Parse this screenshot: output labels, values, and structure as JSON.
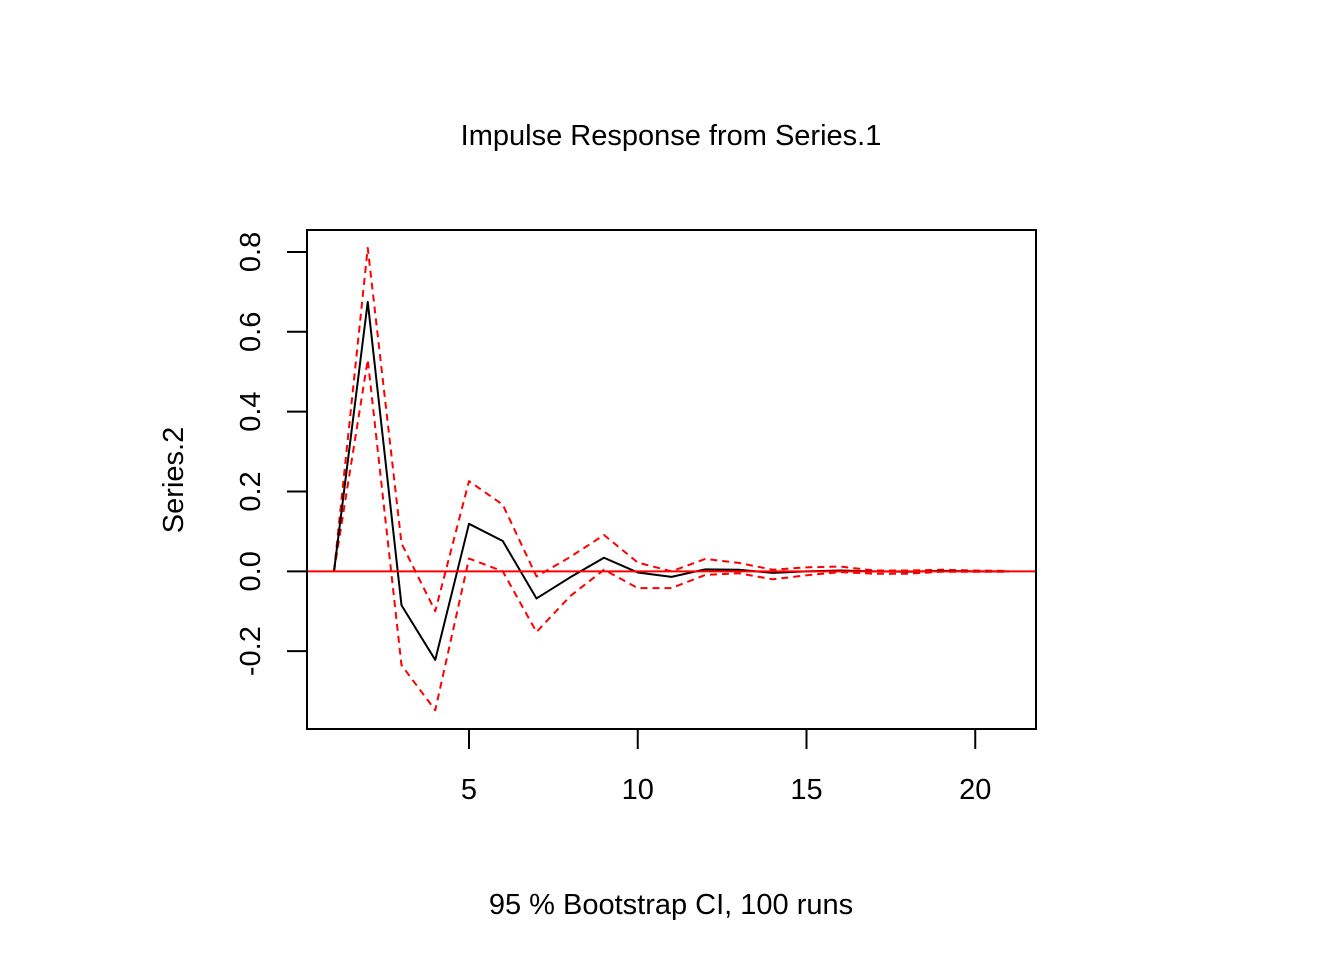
{
  "chart_data": {
    "type": "line",
    "title": "Impulse Response from Series.1",
    "ylabel": "Series.2",
    "xlabel": "95 % Bootstrap CI,  100 runs",
    "xlim": [
      0.2,
      21.8
    ],
    "ylim": [
      -0.395,
      0.855
    ],
    "x_ticks": [
      5,
      10,
      15,
      20
    ],
    "x_tick_labels": [
      "5",
      "10",
      "15",
      "20"
    ],
    "y_ticks": [
      -0.2,
      0.0,
      0.2,
      0.4,
      0.6,
      0.8
    ],
    "y_tick_labels": [
      "-0.2",
      "0.0",
      "0.2",
      "0.4",
      "0.6",
      "0.8"
    ],
    "grid": false,
    "x": [
      1,
      2,
      3,
      4,
      5,
      6,
      7,
      8,
      9,
      10,
      11,
      12,
      13,
      14,
      15,
      16,
      17,
      18,
      19,
      20,
      21
    ],
    "series": [
      {
        "role": "estimate",
        "color": "#000000",
        "values": [
          0.0,
          0.675,
          -0.085,
          -0.222,
          0.119,
          0.076,
          -0.068,
          -0.015,
          0.034,
          -0.003,
          -0.014,
          0.005,
          0.004,
          -0.004,
          0.0,
          0.002,
          0.0,
          -0.001,
          0.001,
          0.0,
          0.0
        ]
      },
      {
        "role": "upper",
        "color": "#ff0000",
        "dash": true,
        "values": [
          0.0,
          0.81,
          0.07,
          -0.1,
          0.226,
          0.167,
          -0.013,
          0.036,
          0.091,
          0.022,
          0.0,
          0.031,
          0.021,
          0.004,
          0.01,
          0.012,
          0.002,
          0.002,
          0.004,
          0.002,
          0.001
        ]
      },
      {
        "role": "lower",
        "color": "#ff0000",
        "dash": true,
        "values": [
          0.0,
          0.53,
          -0.235,
          -0.348,
          0.032,
          0.0,
          -0.152,
          -0.062,
          0.004,
          -0.042,
          -0.042,
          -0.009,
          -0.005,
          -0.02,
          -0.01,
          -0.002,
          -0.006,
          -0.006,
          -0.001,
          -0.001,
          -0.001
        ]
      }
    ],
    "reference_line": {
      "y": 0,
      "color": "#ff0000"
    }
  }
}
